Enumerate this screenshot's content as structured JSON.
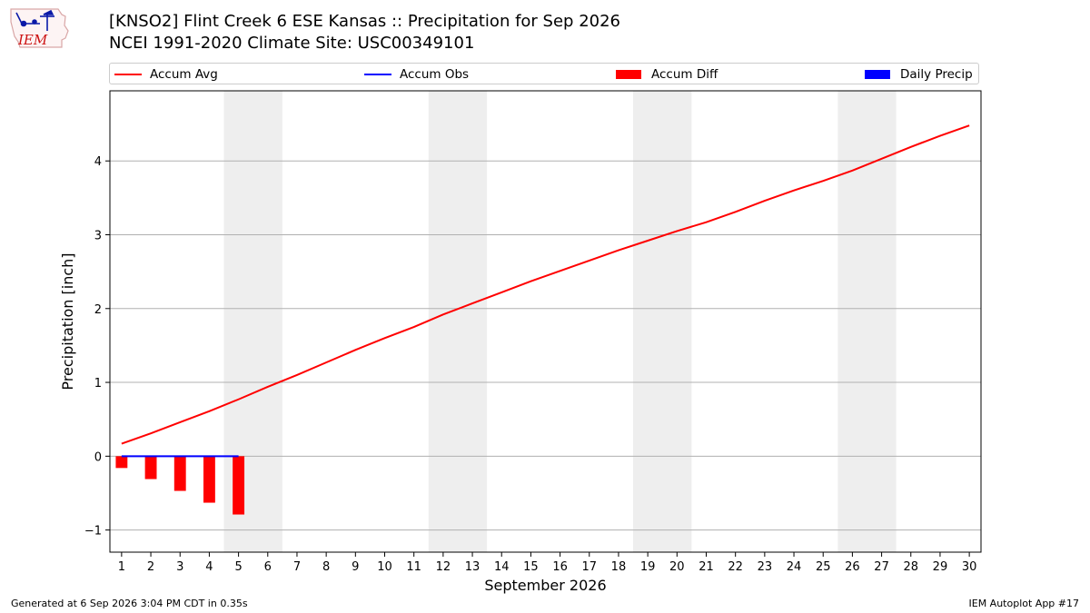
{
  "header": {
    "logo_text": "IEM",
    "title_line1": "[KNSO2] Flint Creek 6 ESE Kansas :: Precipitation for Sep 2026",
    "title_line2": "NCEI 1991-2020 Climate Site: USC00349101"
  },
  "legend": [
    {
      "label": "Accum Avg",
      "color": "#ff0000",
      "kind": "line"
    },
    {
      "label": "Accum Obs",
      "color": "#0000ff",
      "kind": "line"
    },
    {
      "label": "Accum Diff",
      "color": "#ff0000",
      "kind": "box"
    },
    {
      "label": "Daily Precip",
      "color": "#0000ff",
      "kind": "box"
    }
  ],
  "footer": {
    "left": "Generated at 6 Sep 2026 3:04 PM CDT in 0.35s",
    "right": "IEM Autoplot App #17"
  },
  "chart_data": {
    "type": "line",
    "xlabel": "September 2026",
    "ylabel": "Precipitation [inch]",
    "xlim": [
      0.6,
      30.4
    ],
    "ylim": [
      -1.3,
      4.95
    ],
    "x_ticks": [
      1,
      2,
      3,
      4,
      5,
      6,
      7,
      8,
      9,
      10,
      11,
      12,
      13,
      14,
      15,
      16,
      17,
      18,
      19,
      20,
      21,
      22,
      23,
      24,
      25,
      26,
      27,
      28,
      29,
      30
    ],
    "y_ticks": [
      -1,
      0,
      1,
      2,
      3,
      4
    ],
    "y_tick_labels": [
      "−1",
      "0",
      "1",
      "2",
      "3",
      "4"
    ],
    "grid": "horizontal",
    "weekend_shading": [
      [
        4.5,
        6.5
      ],
      [
        11.5,
        13.5
      ],
      [
        18.5,
        20.5
      ],
      [
        25.5,
        27.5
      ]
    ],
    "series": [
      {
        "name": "Accum Avg",
        "kind": "line",
        "color": "#ff0000",
        "x": [
          1,
          2,
          3,
          4,
          5,
          6,
          7,
          8,
          9,
          10,
          11,
          12,
          13,
          14,
          15,
          16,
          17,
          18,
          19,
          20,
          21,
          22,
          23,
          24,
          25,
          26,
          27,
          28,
          29,
          30
        ],
        "values": [
          0.17,
          0.31,
          0.46,
          0.61,
          0.77,
          0.94,
          1.1,
          1.27,
          1.44,
          1.6,
          1.75,
          1.92,
          2.07,
          2.22,
          2.37,
          2.51,
          2.65,
          2.79,
          2.92,
          3.05,
          3.17,
          3.31,
          3.46,
          3.6,
          3.73,
          3.87,
          4.03,
          4.19,
          4.34,
          4.48
        ]
      },
      {
        "name": "Accum Obs",
        "kind": "line",
        "color": "#0000ff",
        "x": [
          1,
          2,
          3,
          4,
          5
        ],
        "values": [
          0.0,
          0.0,
          0.0,
          0.0,
          0.0
        ]
      },
      {
        "name": "Accum Diff",
        "kind": "bar",
        "color": "#ff0000",
        "x": [
          1,
          2,
          3,
          4,
          5
        ],
        "values": [
          -0.16,
          -0.31,
          -0.47,
          -0.63,
          -0.79
        ]
      },
      {
        "name": "Daily Precip",
        "kind": "bar",
        "color": "#0000ff",
        "x": [
          1,
          2,
          3,
          4,
          5
        ],
        "values": [
          0.0,
          0.0,
          0.0,
          0.0,
          0.0
        ]
      }
    ]
  }
}
